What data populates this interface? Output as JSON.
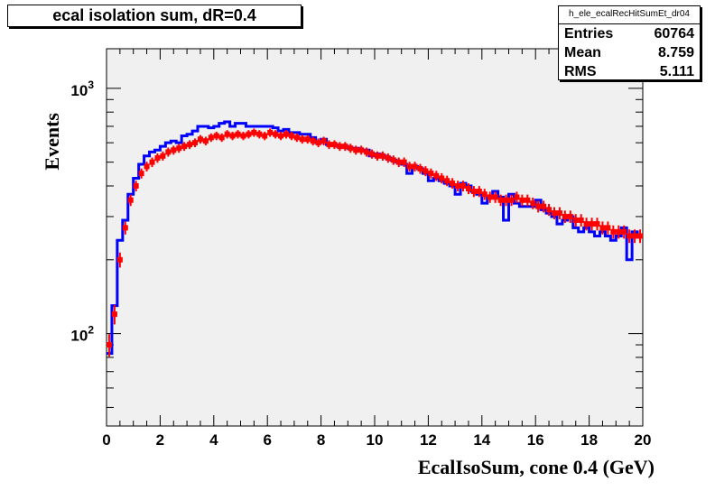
{
  "title": "ecal isolation sum, dR=0.4",
  "stats": {
    "name": "h_ele_ecalRecHitSumEt_dr04",
    "rows": [
      {
        "label": "Entries",
        "value": "60764"
      },
      {
        "label": "Mean",
        "value": "8.759"
      },
      {
        "label": "RMS",
        "value": "5.111"
      }
    ]
  },
  "colors": {
    "frame_bg": "#f0f0f0",
    "histogram": "#0000ff",
    "markers": "#ff0000"
  },
  "chart_data": {
    "type": "line",
    "xlabel": "EcalIsoSum, cone 0.4 (GeV)",
    "ylabel": "Events",
    "xlim": [
      0,
      20
    ],
    "ylim": [
      42,
      1450
    ],
    "yscale": "log",
    "x_ticks": [
      "0",
      "2",
      "4",
      "6",
      "8",
      "10",
      "12",
      "14",
      "16",
      "18",
      "20"
    ],
    "y_ticks": [
      {
        "value": 100,
        "base": "10",
        "exp": "2"
      },
      {
        "value": 1000,
        "base": "10",
        "exp": "3"
      }
    ],
    "bin_width": 0.2,
    "series": [
      {
        "style": "histogram",
        "color": "#0000ff",
        "values": [
          83,
          130,
          240,
          290,
          370,
          430,
          490,
          530,
          550,
          560,
          580,
          600,
          610,
          600,
          640,
          650,
          670,
          700,
          700,
          690,
          700,
          720,
          730,
          700,
          720,
          720,
          700,
          700,
          700,
          700,
          700,
          690,
          670,
          680,
          660,
          660,
          650,
          650,
          630,
          600,
          620,
          590,
          590,
          580,
          580,
          570,
          570,
          560,
          560,
          530,
          540,
          530,
          520,
          510,
          500,
          490,
          450,
          480,
          470,
          450,
          420,
          430,
          420,
          410,
          400,
          370,
          410,
          400,
          380,
          370,
          340,
          360,
          380,
          360,
          290,
          370,
          340,
          330,
          330,
          330,
          350,
          320,
          310,
          300,
          280,
          290,
          300,
          270,
          260,
          270,
          260,
          250,
          260,
          250,
          240,
          250,
          270,
          200,
          260,
          250
        ]
      },
      {
        "style": "markers",
        "color": "#ff0000",
        "values": [
          90,
          120,
          200,
          270,
          350,
          400,
          450,
          480,
          500,
          520,
          530,
          550,
          560,
          570,
          580,
          590,
          600,
          620,
          610,
          630,
          640,
          630,
          650,
          640,
          650,
          640,
          650,
          660,
          650,
          640,
          660,
          650,
          640,
          650,
          640,
          630,
          620,
          620,
          610,
          600,
          610,
          590,
          590,
          580,
          580,
          570,
          560,
          560,
          550,
          540,
          530,
          530,
          520,
          510,
          500,
          500,
          480,
          480,
          470,
          460,
          450,
          440,
          430,
          420,
          410,
          400,
          400,
          390,
          380,
          380,
          370,
          360,
          360,
          350,
          350,
          350,
          360,
          350,
          350,
          340,
          330,
          330,
          320,
          310,
          310,
          300,
          300,
          290,
          290,
          280,
          280,
          280,
          270,
          270,
          260,
          260,
          260,
          250,
          250,
          250
        ]
      }
    ]
  }
}
